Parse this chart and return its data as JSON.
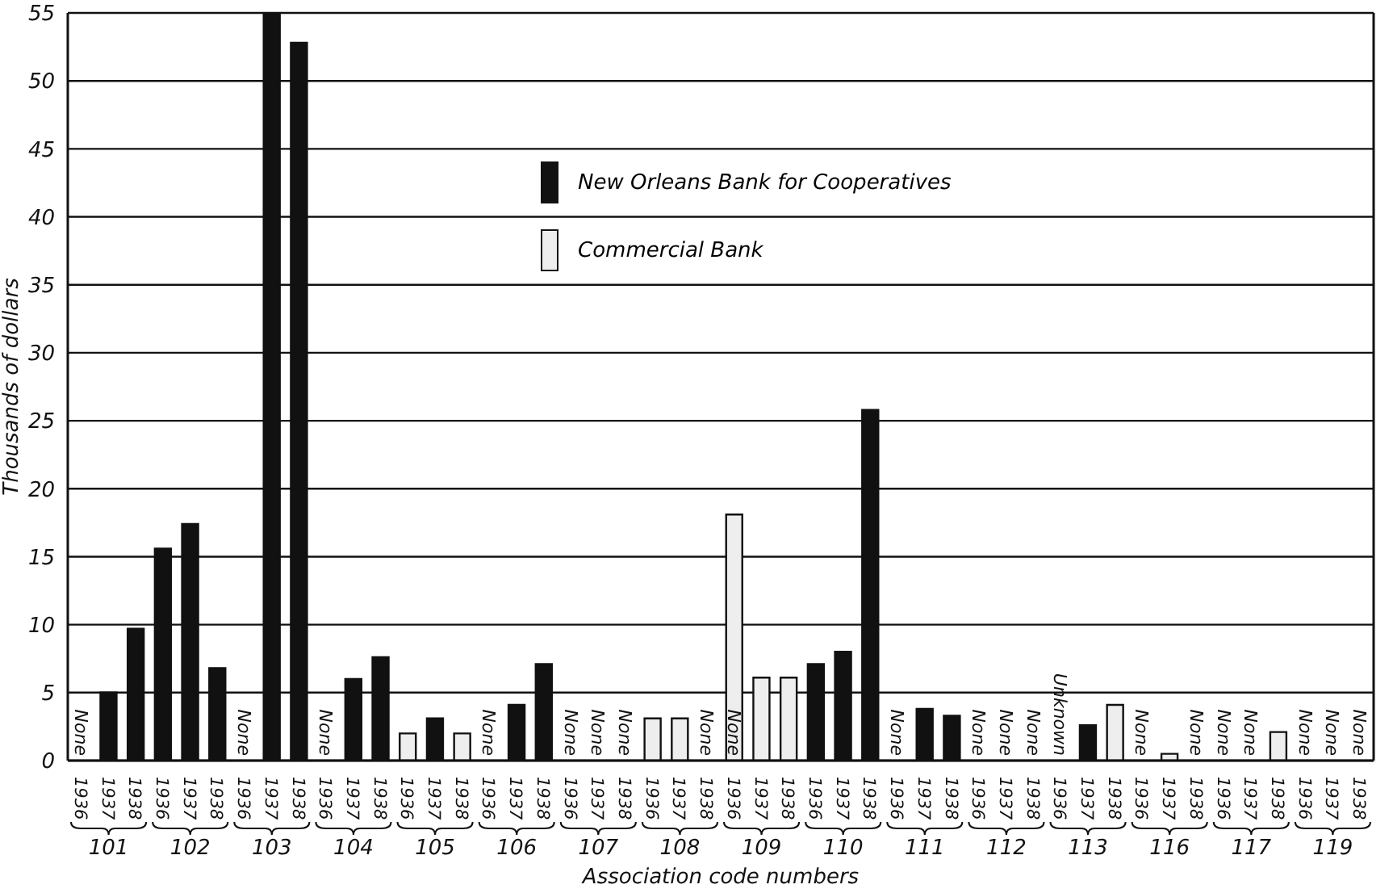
{
  "chart_data": {
    "type": "bar",
    "xlabel": "Association code numbers",
    "ylabel": "Thousands of dollars",
    "categories": [
      "1936",
      "1937",
      "1938",
      "1936",
      "1937",
      "1938",
      "1936",
      "1937",
      "1938",
      "1936",
      "1937",
      "1938",
      "1936",
      "1937",
      "1938",
      "1936",
      "1937",
      "1938",
      "1936",
      "1937",
      "1938",
      "1936",
      "1937",
      "1938",
      "1936",
      "1937",
      "1938",
      "1936",
      "1937",
      "1938",
      "1936",
      "1937",
      "1938",
      "1936",
      "1937",
      "1938",
      "1936",
      "1937",
      "1938",
      "1936",
      "1937",
      "1938",
      "1936",
      "1937",
      "1938",
      "1936",
      "1937",
      "1938"
    ],
    "series": [
      {
        "name": "New Orleans Bank for Cooperatives",
        "color": "#111111",
        "values": [
          null,
          5,
          9.7,
          15.6,
          17.4,
          6.8,
          null,
          55,
          52.8,
          null,
          6,
          7.6,
          null,
          3.1,
          null,
          null,
          4.1,
          7.1,
          null,
          null,
          null,
          null,
          null,
          null,
          null,
          null,
          null,
          7.1,
          8,
          25.8,
          null,
          3.8,
          3.3,
          null,
          null,
          null,
          null,
          2.6,
          null,
          null,
          null,
          null,
          null,
          null,
          null,
          null,
          null,
          null
        ],
        "value_labels": [
          "None",
          null,
          null,
          null,
          null,
          null,
          "None",
          null,
          null,
          "None",
          null,
          null,
          null,
          null,
          null,
          "None",
          null,
          null,
          "None",
          "None",
          "None",
          null,
          null,
          "None",
          "None",
          null,
          null,
          null,
          null,
          null,
          "None",
          null,
          null,
          "None",
          "None",
          "None",
          "Unknown",
          null,
          null,
          "None",
          null,
          "None",
          "None",
          "None",
          null,
          "None",
          "None",
          "None"
        ]
      },
      {
        "name": "Commercial Bank",
        "color": "#eeeeee",
        "values": [
          null,
          null,
          null,
          null,
          null,
          null,
          null,
          null,
          null,
          null,
          null,
          null,
          2,
          null,
          2,
          null,
          null,
          null,
          null,
          null,
          null,
          3.1,
          3.1,
          null,
          18.1,
          6.1,
          6.1,
          null,
          null,
          null,
          null,
          null,
          null,
          null,
          null,
          null,
          null,
          null,
          4.1,
          null,
          0.5,
          null,
          null,
          null,
          2.1,
          null,
          null,
          null
        ]
      }
    ],
    "stacked": true,
    "annotations": [
      "101",
      "102",
      "103",
      "104",
      "105",
      "106",
      "107",
      "108",
      "109",
      "110",
      "111",
      "112",
      "113",
      "116",
      "117",
      "119"
    ],
    "ylim": [
      0,
      55
    ],
    "yticks": [
      0,
      5,
      10,
      15,
      20,
      25,
      30,
      35,
      40,
      45,
      50,
      55
    ],
    "grid": "y",
    "legend": "top"
  }
}
